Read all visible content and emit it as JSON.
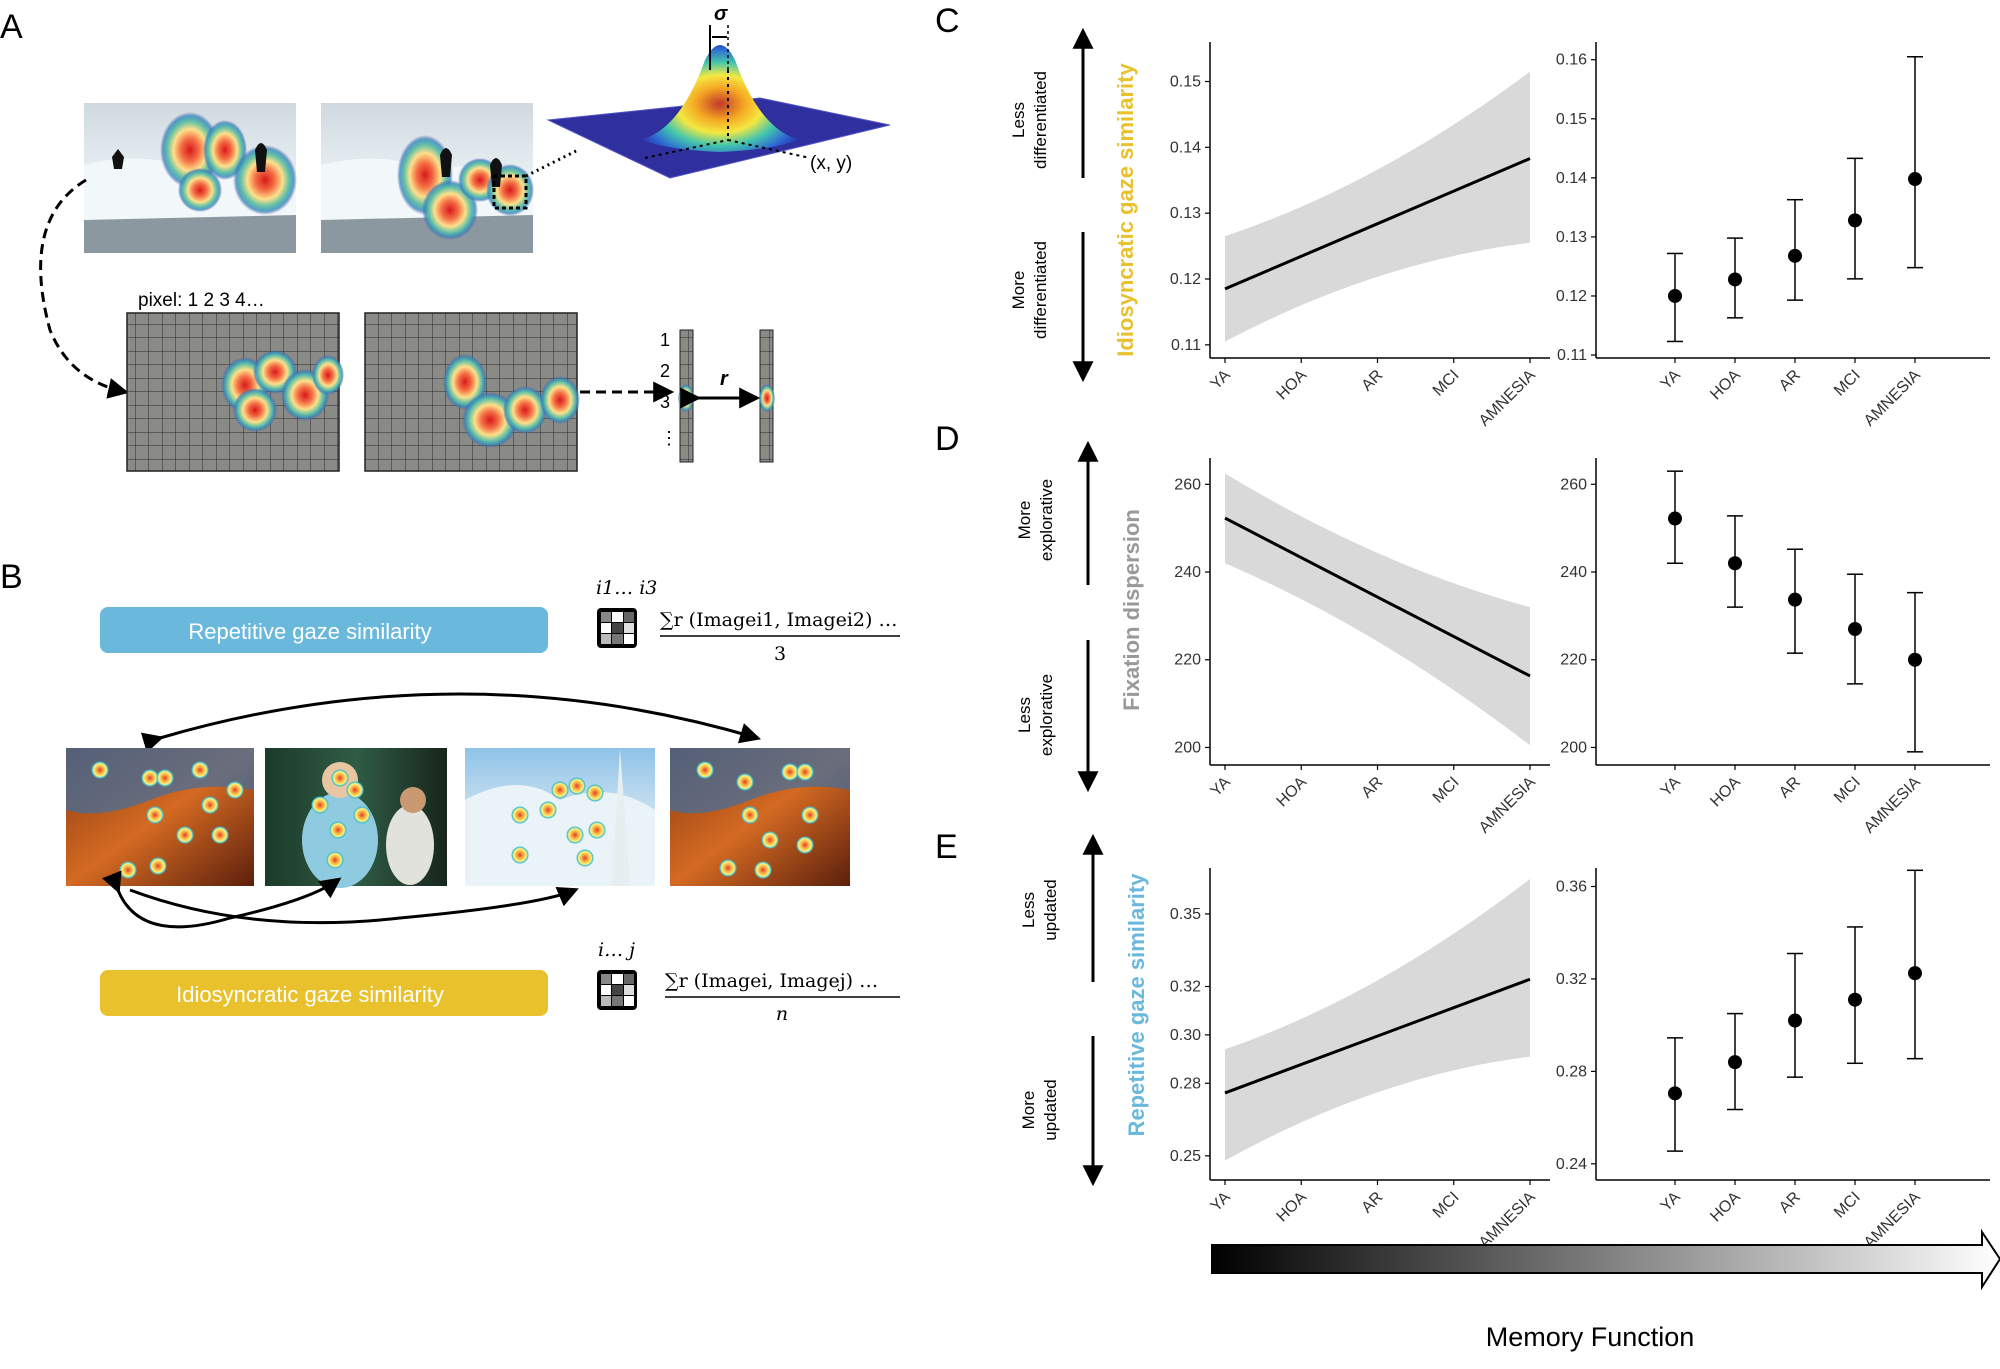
{
  "panels": {
    "a": "A",
    "b": "B",
    "c": "C",
    "d": "D",
    "e": "E"
  },
  "panel_a": {
    "sigma": "σ",
    "r": "r",
    "xy": "(x, y)",
    "pixel_label": "pixel: 1 2 3 4…",
    "rows": [
      "1",
      "2",
      "3",
      "⋮"
    ]
  },
  "panel_b": {
    "repetitive_label": "Repetitive gaze similarity",
    "idiosyncratic_label": "Idiosyncratic gaze similarity",
    "rep_sub": "i1… i3",
    "idio_sub": "i… j",
    "rep_num": "∑r (Imagei1, Imagei2) …",
    "rep_den": "3",
    "idio_num": "∑r (Imagei, Imagej) …",
    "idio_den": "n"
  },
  "colors": {
    "repetitive": "#6ab8dc",
    "idiosyncratic": "#e9c12c",
    "dispersion": "#999999",
    "band": "#d9d9d9"
  },
  "side_labels": {
    "c_top": [
      "Less",
      "differentiated"
    ],
    "c_bottom": [
      "More",
      "differentiated"
    ],
    "d_top": [
      "More",
      "explorative"
    ],
    "d_bottom": [
      "Less",
      "explorative"
    ],
    "e_top": [
      "Less",
      "updated"
    ],
    "e_bottom": [
      "More",
      "updated"
    ]
  },
  "memory_function": "Memory Function",
  "chart_data": [
    {
      "id": "C-line",
      "type": "line",
      "ylabel": "Idiosyncratic gaze similarity",
      "categories": [
        "YA",
        "HOA",
        "AR",
        "MCI",
        "AMNESIA"
      ],
      "ylim": [
        0.108,
        0.156
      ],
      "yticks": [
        0.11,
        0.12,
        0.13,
        0.14,
        0.15
      ],
      "fit": [
        0.1185,
        0.1383
      ],
      "band_lower": [
        0.1105,
        0.1255
      ],
      "band_upper": [
        0.1265,
        0.1515
      ]
    },
    {
      "id": "C-points",
      "type": "scatter",
      "categories": [
        "YA",
        "HOA",
        "AR",
        "MCI",
        "AMNESIA"
      ],
      "ylim": [
        0.1095,
        0.163
      ],
      "yticks": [
        0.11,
        0.12,
        0.13,
        0.14,
        0.15,
        0.16
      ],
      "values": [
        0.12,
        0.1228,
        0.1268,
        0.1328,
        0.1398
      ],
      "lower": [
        0.1123,
        0.1163,
        0.1193,
        0.1229,
        0.1248
      ],
      "upper": [
        0.1272,
        0.1298,
        0.1363,
        0.1433,
        0.1605
      ]
    },
    {
      "id": "D-line",
      "type": "line",
      "ylabel": "Fixation dispersion",
      "categories": [
        "YA",
        "HOA",
        "AR",
        "MCI",
        "AMNESIA"
      ],
      "ylim": [
        196,
        266
      ],
      "yticks": [
        200,
        220,
        240,
        260
      ],
      "fit": [
        252.3,
        216.3
      ],
      "band_lower": [
        242,
        200.5
      ],
      "band_upper": [
        262.5,
        232
      ]
    },
    {
      "id": "D-points",
      "type": "scatter",
      "categories": [
        "YA",
        "HOA",
        "AR",
        "MCI",
        "AMNESIA"
      ],
      "ylim": [
        196,
        266
      ],
      "yticks": [
        200,
        220,
        240,
        260
      ],
      "values": [
        252.2,
        242,
        233.7,
        227,
        220
      ],
      "lower": [
        242,
        232,
        221.5,
        214.5,
        199
      ],
      "upper": [
        263,
        252.8,
        245.2,
        239.5,
        235.3
      ]
    },
    {
      "id": "E-line",
      "type": "line",
      "ylabel": "Repetitive gaze similarity",
      "categories": [
        "YA",
        "HOA",
        "AR",
        "MCI",
        "AMNESIA"
      ],
      "ylim": [
        0.24,
        0.369
      ],
      "yticks": [
        0.25,
        0.28,
        0.3,
        0.32,
        0.35
      ],
      "fit": [
        0.276,
        0.323
      ],
      "band_lower": [
        0.248,
        0.291
      ],
      "band_upper": [
        0.294,
        0.3645
      ]
    },
    {
      "id": "E-points",
      "type": "scatter",
      "categories": [
        "YA",
        "HOA",
        "AR",
        "MCI",
        "AMNESIA"
      ],
      "ylim": [
        0.233,
        0.368
      ],
      "yticks": [
        0.24,
        0.28,
        0.32,
        0.36
      ],
      "values": [
        0.2705,
        0.284,
        0.302,
        0.311,
        0.3225
      ],
      "lower": [
        0.2455,
        0.2635,
        0.2775,
        0.2835,
        0.2855
      ],
      "upper": [
        0.2945,
        0.305,
        0.331,
        0.3425,
        0.367
      ]
    }
  ]
}
